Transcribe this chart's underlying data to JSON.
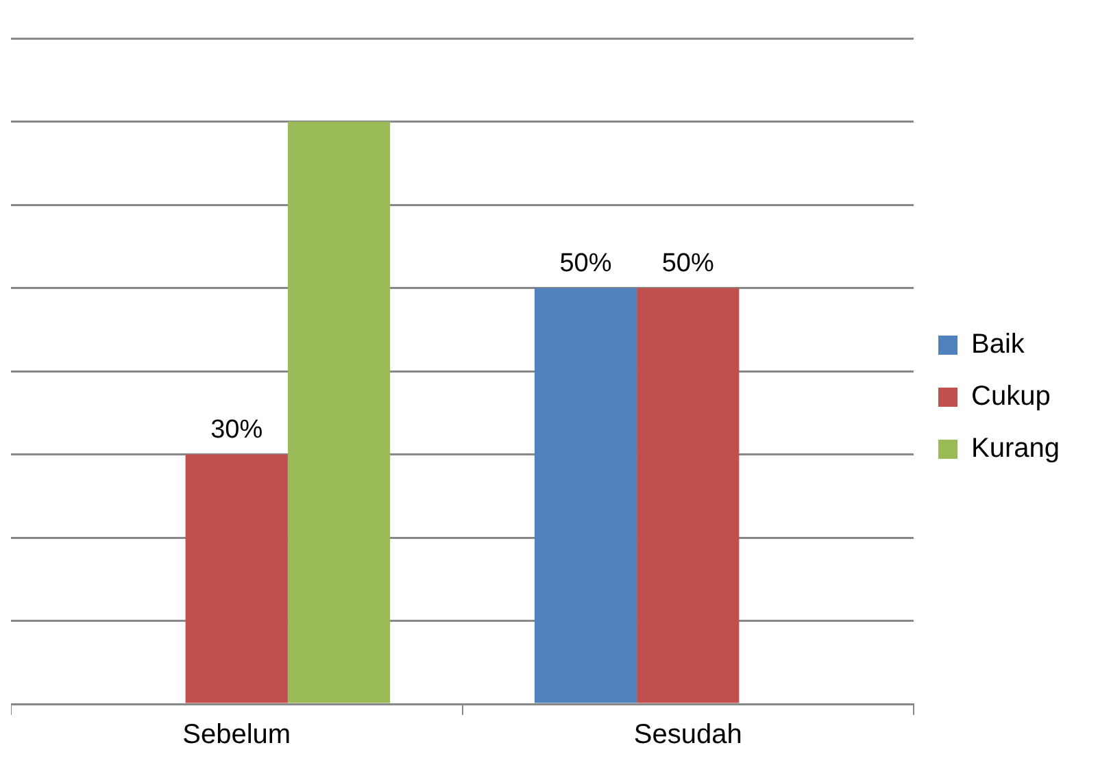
{
  "chart_data": {
    "type": "bar",
    "categories": [
      "Sebelum",
      "Sesudah"
    ],
    "series": [
      {
        "name": "Baik",
        "color": "#4f81bd",
        "values": [
          0,
          50
        ],
        "value_labels": [
          null,
          "50%"
        ]
      },
      {
        "name": "Cukup",
        "color": "#c0504d",
        "values": [
          30,
          50
        ],
        "value_labels": [
          "30%",
          "50%"
        ]
      },
      {
        "name": "Kurang",
        "color": "#9bbb59",
        "values": [
          70,
          0
        ],
        "value_labels": [
          null,
          null
        ]
      }
    ],
    "ylim": [
      0,
      80
    ],
    "yticks": [
      {
        "value": 0,
        "label": null
      },
      {
        "value": 10,
        "label": null
      },
      {
        "value": 20,
        "label": null
      },
      {
        "value": 30,
        "label": null
      },
      {
        "value": 40,
        "label": null
      },
      {
        "value": 50,
        "label": null
      },
      {
        "value": 60,
        "label": null
      },
      {
        "value": 70,
        "label": null
      },
      {
        "value": 80,
        "label": null
      }
    ],
    "grid": "y",
    "legend": "right",
    "tick_labels": "x"
  }
}
